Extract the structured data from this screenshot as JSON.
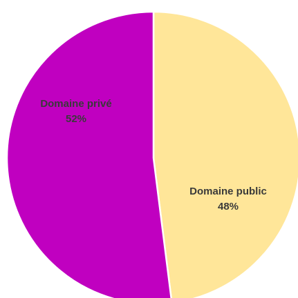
{
  "chart_data": {
    "type": "pie",
    "title": "",
    "slices": [
      {
        "label": "Domaine public",
        "value": 48,
        "value_label": "48%",
        "color": "#FFE699"
      },
      {
        "label": "Domaine privé",
        "value": 52,
        "value_label": "52%",
        "color": "#C000C0"
      }
    ],
    "start_angle_deg": 0,
    "direction": "clockwise",
    "separator_color": "#ffffff",
    "legend": "none"
  }
}
